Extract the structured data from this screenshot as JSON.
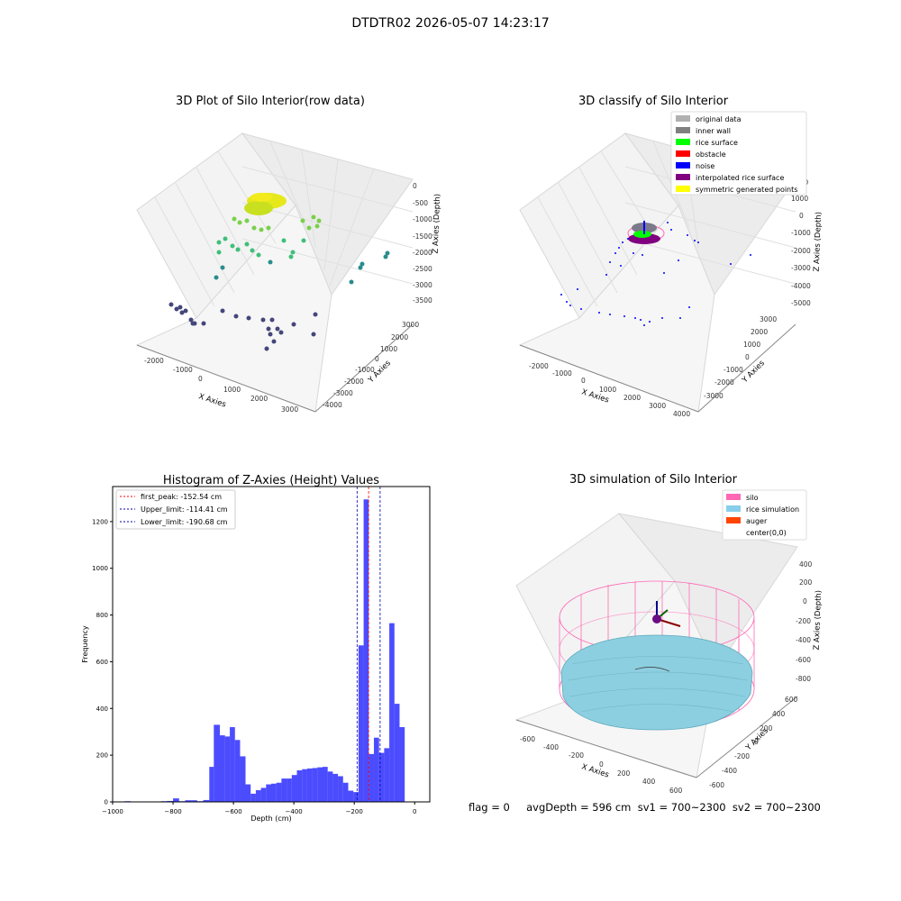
{
  "figure": {
    "suptitle": "DTDTR02 2026-05-07 14:23:17",
    "status_line": "flag = 0     avgDepth = 596 cm  sv1 = 700~2300  sv2 = 700~2300"
  },
  "panels": {
    "raw": {
      "title": "3D Plot of Silo Interior(row data)",
      "xlabel": "X Axies",
      "ylabel": "Y Axies",
      "zlabel": "Z Axies (Depth)",
      "xticks": [
        "-2000",
        "-1000",
        "0",
        "1000",
        "2000",
        "3000"
      ],
      "yticks": [
        "3000",
        "2000",
        "1000",
        "0",
        "-1000",
        "-2000",
        "-3000",
        "-4000"
      ],
      "zticks": [
        "0",
        "-500",
        "-1000",
        "-1500",
        "-2000",
        "-2500",
        "-3000",
        "-3500"
      ]
    },
    "classify": {
      "title": "3D classify of Silo Interior",
      "xlabel": "X Axies",
      "ylabel": "Y Axies",
      "zlabel": "Z Axies (Depth)",
      "xticks": [
        "-2000",
        "-1000",
        "0",
        "1000",
        "2000",
        "3000",
        "4000"
      ],
      "yticks": [
        "3000",
        "2000",
        "1000",
        "0",
        "-1000",
        "-2000",
        "-3000"
      ],
      "zticks": [
        "2000",
        "1000",
        "0",
        "-1000",
        "-2000",
        "-3000",
        "-4000",
        "-5000"
      ],
      "legend": [
        {
          "label": "original data",
          "color": "#b0b0b0"
        },
        {
          "label": "inner wall",
          "color": "#808080"
        },
        {
          "label": "rice surface",
          "color": "#00ff00"
        },
        {
          "label": "obstacle",
          "color": "#ff0000"
        },
        {
          "label": "noise",
          "color": "#0000ff"
        },
        {
          "label": "interpolated rice surface",
          "color": "#800080"
        },
        {
          "label": "symmetric generated points",
          "color": "#ffff00"
        }
      ]
    },
    "simulation": {
      "title": "3D simulation of Silo Interior",
      "xlabel": "X Axies",
      "ylabel": "Y Axies",
      "zlabel": "Z Axies (Depth)",
      "xticks": [
        "-600",
        "-400",
        "-200",
        "0",
        "200",
        "400",
        "600"
      ],
      "yticks": [
        "600",
        "400",
        "200",
        "0",
        "-200",
        "-400",
        "-600"
      ],
      "zticks": [
        "400",
        "200",
        "0",
        "-200",
        "-400",
        "-600",
        "-800"
      ],
      "legend": [
        {
          "label": "silo",
          "color": "#ff69b4"
        },
        {
          "label": "rice simulation",
          "color": "#87ceeb"
        },
        {
          "label": "auger",
          "color": "#ff4500"
        },
        {
          "label": "center(0,0)",
          "color": ""
        }
      ]
    }
  },
  "chart_data": {
    "type": "bar",
    "title": "Histogram of Z-Axies (Height) Values",
    "xlabel": "Depth (cm)",
    "ylabel": "Frequency",
    "xlim": [
      -1000,
      50
    ],
    "ylim": [
      0,
      1350
    ],
    "xticks": [
      -1000,
      -800,
      -600,
      -400,
      -200,
      0
    ],
    "yticks": [
      0,
      200,
      400,
      600,
      800,
      1000,
      1200
    ],
    "bar_color": "#0000ff",
    "bins": [
      {
        "x0": -960,
        "x1": -940,
        "count": 3
      },
      {
        "x0": -840,
        "x1": -820,
        "count": 3
      },
      {
        "x0": -820,
        "x1": -800,
        "count": 4
      },
      {
        "x0": -800,
        "x1": -780,
        "count": 15
      },
      {
        "x0": -780,
        "x1": -760,
        "count": 3
      },
      {
        "x0": -760,
        "x1": -740,
        "count": 7
      },
      {
        "x0": -740,
        "x1": -720,
        "count": 7
      },
      {
        "x0": -720,
        "x1": -700,
        "count": 3
      },
      {
        "x0": -700,
        "x1": -680,
        "count": 8
      },
      {
        "x0": -680,
        "x1": -665,
        "count": 150
      },
      {
        "x0": -665,
        "x1": -645,
        "count": 330
      },
      {
        "x0": -645,
        "x1": -628,
        "count": 285
      },
      {
        "x0": -628,
        "x1": -612,
        "count": 280
      },
      {
        "x0": -612,
        "x1": -595,
        "count": 320
      },
      {
        "x0": -595,
        "x1": -578,
        "count": 265
      },
      {
        "x0": -578,
        "x1": -560,
        "count": 195
      },
      {
        "x0": -560,
        "x1": -543,
        "count": 75
      },
      {
        "x0": -543,
        "x1": -526,
        "count": 35
      },
      {
        "x0": -526,
        "x1": -509,
        "count": 50
      },
      {
        "x0": -509,
        "x1": -492,
        "count": 60
      },
      {
        "x0": -492,
        "x1": -475,
        "count": 75
      },
      {
        "x0": -475,
        "x1": -458,
        "count": 78
      },
      {
        "x0": -458,
        "x1": -441,
        "count": 82
      },
      {
        "x0": -441,
        "x1": -424,
        "count": 100
      },
      {
        "x0": -424,
        "x1": -407,
        "count": 100
      },
      {
        "x0": -407,
        "x1": -390,
        "count": 115
      },
      {
        "x0": -390,
        "x1": -373,
        "count": 135
      },
      {
        "x0": -373,
        "x1": -356,
        "count": 140
      },
      {
        "x0": -356,
        "x1": -339,
        "count": 143
      },
      {
        "x0": -339,
        "x1": -322,
        "count": 145
      },
      {
        "x0": -322,
        "x1": -305,
        "count": 148
      },
      {
        "x0": -305,
        "x1": -288,
        "count": 150
      },
      {
        "x0": -288,
        "x1": -271,
        "count": 130
      },
      {
        "x0": -271,
        "x1": -254,
        "count": 120
      },
      {
        "x0": -254,
        "x1": -237,
        "count": 110
      },
      {
        "x0": -237,
        "x1": -220,
        "count": 82
      },
      {
        "x0": -220,
        "x1": -203,
        "count": 48
      },
      {
        "x0": -203,
        "x1": -186,
        "count": 42
      },
      {
        "x0": -186,
        "x1": -169,
        "count": 670
      },
      {
        "x0": -169,
        "x1": -152,
        "count": 1295
      },
      {
        "x0": -152,
        "x1": -135,
        "count": 205
      },
      {
        "x0": -135,
        "x1": -118,
        "count": 275
      },
      {
        "x0": -118,
        "x1": -101,
        "count": 210
      },
      {
        "x0": -101,
        "x1": -84,
        "count": 230
      },
      {
        "x0": -84,
        "x1": -67,
        "count": 765
      },
      {
        "x0": -67,
        "x1": -50,
        "count": 420
      },
      {
        "x0": -50,
        "x1": -33,
        "count": 320
      }
    ],
    "vlines": [
      {
        "label": "first_peak: -152.54 cm",
        "x": -152.54,
        "color": "#ff0000"
      },
      {
        "label": "Upper_limit: -114.41 cm",
        "x": -114.41,
        "color": "#0000aa"
      },
      {
        "label": "Lower_limit: -190.68 cm",
        "x": -190.68,
        "color": "#0000aa"
      }
    ]
  }
}
